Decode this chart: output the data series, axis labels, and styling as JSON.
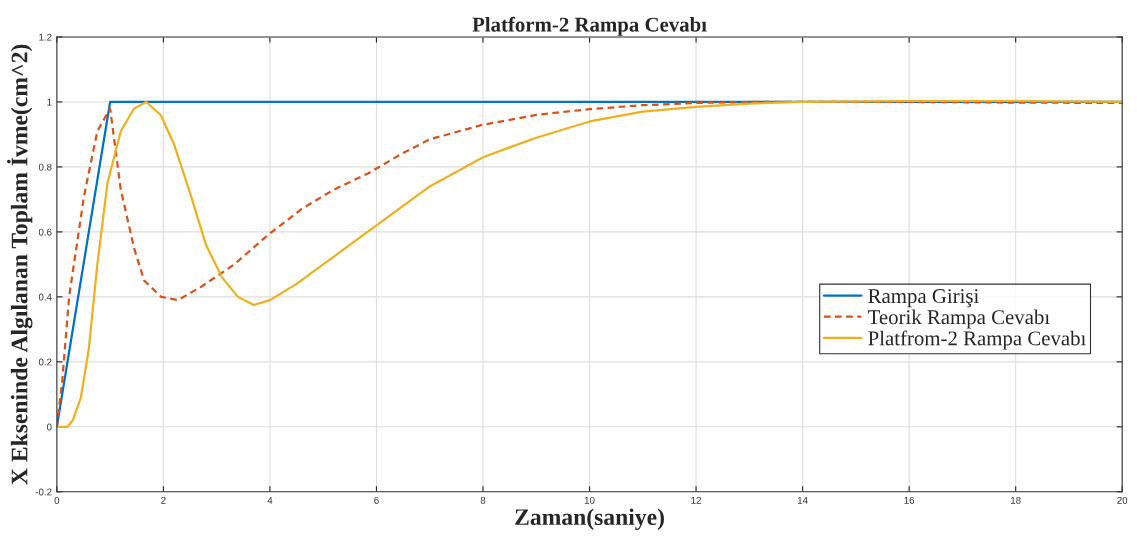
{
  "chart_data": {
    "type": "line",
    "title": "Platform-2 Rampa Cevabı",
    "xlabel": "Zaman(saniye)",
    "ylabel": "X Ekseninde Algılanan Toplam İvme(cm^2)",
    "xlim": [
      0,
      20
    ],
    "ylim": [
      -0.2,
      1.2
    ],
    "xticks": [
      0,
      2,
      4,
      6,
      8,
      10,
      12,
      14,
      16,
      18,
      20
    ],
    "yticks": [
      -0.2,
      0,
      0.2,
      0.4,
      0.6,
      0.8,
      1,
      1.2
    ],
    "grid": true,
    "legend": "right",
    "marker": "none",
    "series": [
      {
        "name": "Rampa Girişi",
        "color": "#0072bd",
        "line_style": "solid",
        "x": [
          0,
          1,
          20
        ],
        "values": [
          0,
          1,
          1
        ]
      },
      {
        "name": "Teorik Rampa Cevabı",
        "color": "#d95319",
        "line_style": "dashed",
        "x": [
          0,
          0.1,
          0.23,
          0.51,
          0.76,
          1.0,
          1.2,
          1.45,
          1.64,
          1.96,
          2.27,
          2.7,
          3.33,
          3.96,
          4.59,
          5.2,
          5.84,
          6.47,
          7,
          8,
          9,
          10,
          11,
          12,
          13,
          14,
          16,
          18,
          20
        ],
        "values": [
          0,
          0.14,
          0.4,
          0.71,
          0.91,
          0.98,
          0.73,
          0.55,
          0.45,
          0.4,
          0.39,
          0.43,
          0.5,
          0.59,
          0.67,
          0.73,
          0.78,
          0.84,
          0.885,
          0.93,
          0.96,
          0.978,
          0.99,
          0.997,
          1.0,
          1.0,
          1.0,
          0.998,
          0.997
        ]
      },
      {
        "name": "Platfrom-2 Rampa Cevabı",
        "color": "#edb120",
        "line_style": "solid",
        "x": [
          0,
          0.2,
          0.3,
          0.45,
          0.6,
          0.76,
          0.95,
          1.2,
          1.45,
          1.68,
          1.95,
          2.2,
          2.5,
          2.8,
          3.1,
          3.4,
          3.7,
          4.0,
          4.5,
          5,
          5.5,
          6,
          6.5,
          7,
          8,
          9,
          10,
          11,
          12,
          13,
          14,
          16,
          18,
          20
        ],
        "values": [
          0,
          0,
          0.02,
          0.09,
          0.24,
          0.5,
          0.75,
          0.91,
          0.98,
          1.0,
          0.96,
          0.87,
          0.72,
          0.56,
          0.46,
          0.4,
          0.375,
          0.39,
          0.44,
          0.5,
          0.56,
          0.62,
          0.68,
          0.74,
          0.83,
          0.89,
          0.94,
          0.97,
          0.985,
          0.995,
          1.0,
          1.003,
          1.003,
          1.0
        ]
      }
    ]
  }
}
